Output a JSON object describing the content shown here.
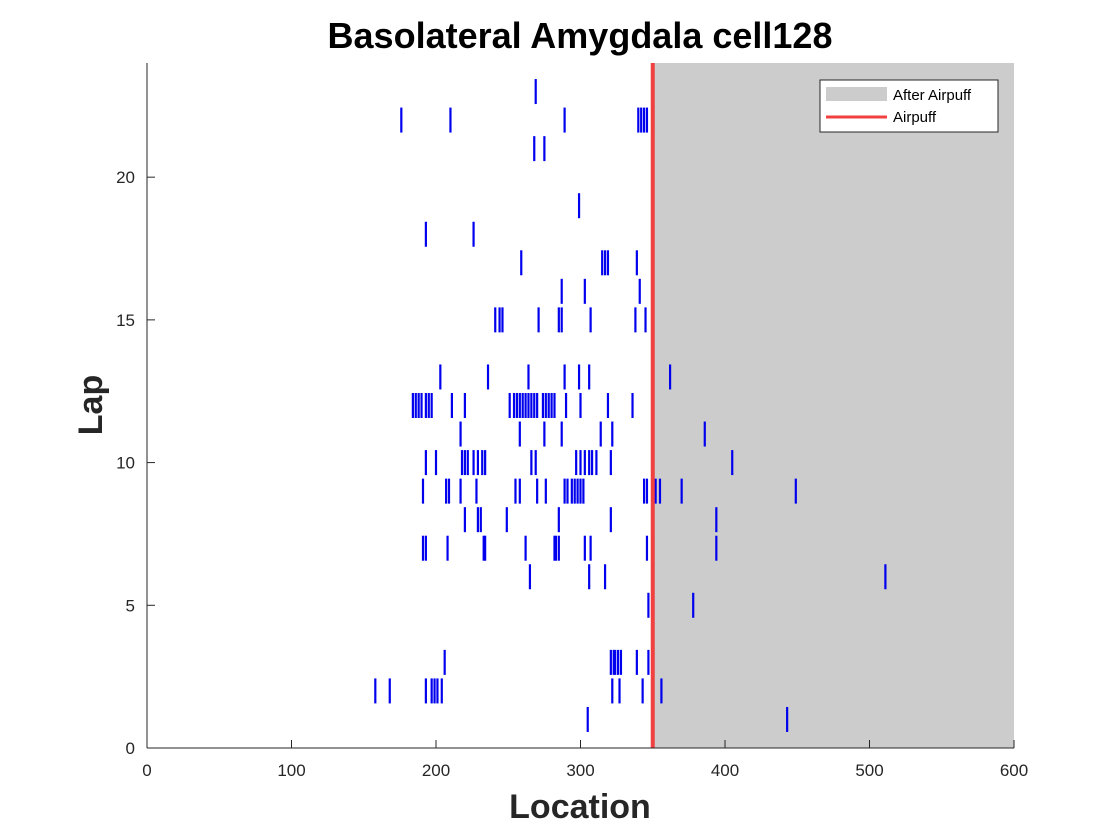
{
  "chart_data": {
    "type": "raster",
    "title": "Basolateral Amygdala cell128",
    "xlabel": "Location",
    "ylabel": "Lap",
    "xlim": [
      0,
      600
    ],
    "ylim": [
      0,
      24
    ],
    "xticks": [
      0,
      100,
      200,
      300,
      400,
      500,
      600
    ],
    "yticks": [
      0,
      5,
      10,
      15,
      20
    ],
    "airpuff_location": 350,
    "shaded_region": {
      "name": "After Airpuff",
      "from": 350,
      "to": 600,
      "color": "#cccccc"
    },
    "airpuff_line": {
      "name": "Airpuff",
      "color": "#f04040"
    },
    "spike_color": "#0000ee",
    "legend": {
      "position": "top-right",
      "entries": [
        "After Airpuff",
        "Airpuff"
      ]
    },
    "spikes": [
      {
        "lap": 1,
        "x": [
          305,
          443
        ]
      },
      {
        "lap": 2,
        "x": [
          158,
          168,
          193,
          197,
          199,
          201,
          204,
          322,
          327,
          343,
          356
        ]
      },
      {
        "lap": 3,
        "x": [
          206,
          321,
          323,
          324,
          326,
          328,
          339,
          347
        ]
      },
      {
        "lap": 5,
        "x": [
          347,
          378
        ]
      },
      {
        "lap": 6,
        "x": [
          265,
          306,
          317,
          511
        ]
      },
      {
        "lap": 7,
        "x": [
          191,
          193,
          208,
          233,
          234,
          262,
          282,
          283,
          285,
          303,
          307,
          346,
          394
        ]
      },
      {
        "lap": 8,
        "x": [
          220,
          229,
          231,
          249,
          285,
          321,
          394
        ]
      },
      {
        "lap": 9,
        "x": [
          191,
          207,
          209,
          217,
          228,
          255,
          258,
          270,
          276,
          289,
          291,
          294,
          296,
          298,
          300,
          302,
          344,
          346,
          352,
          355,
          370,
          449
        ]
      },
      {
        "lap": 10,
        "x": [
          193,
          200,
          218,
          220,
          222,
          226,
          229,
          232,
          234,
          266,
          269,
          297,
          300,
          303,
          306,
          308,
          311,
          321,
          405
        ]
      },
      {
        "lap": 11,
        "x": [
          217,
          258,
          275,
          287,
          314,
          322,
          386
        ]
      },
      {
        "lap": 12,
        "x": [
          184,
          186,
          188,
          190,
          193,
          195,
          197,
          211,
          220,
          251,
          254,
          256,
          258,
          260,
          262,
          264,
          266,
          268,
          270,
          274,
          276,
          278,
          280,
          282,
          290,
          300,
          319,
          336
        ]
      },
      {
        "lap": 13,
        "x": [
          203,
          236,
          264,
          289,
          299,
          306,
          362
        ]
      },
      {
        "lap": 15,
        "x": [
          241,
          244,
          246,
          271,
          285,
          287,
          307,
          338,
          345
        ]
      },
      {
        "lap": 16,
        "x": [
          287,
          303,
          341
        ]
      },
      {
        "lap": 17,
        "x": [
          259,
          315,
          317,
          319,
          339
        ]
      },
      {
        "lap": 18,
        "x": [
          193,
          226
        ]
      },
      {
        "lap": 19,
        "x": [
          299
        ]
      },
      {
        "lap": 21,
        "x": [
          268,
          275
        ]
      },
      {
        "lap": 22,
        "x": [
          176,
          210,
          289,
          340,
          342,
          344,
          346
        ]
      },
      {
        "lap": 23,
        "x": [
          269
        ]
      }
    ]
  }
}
